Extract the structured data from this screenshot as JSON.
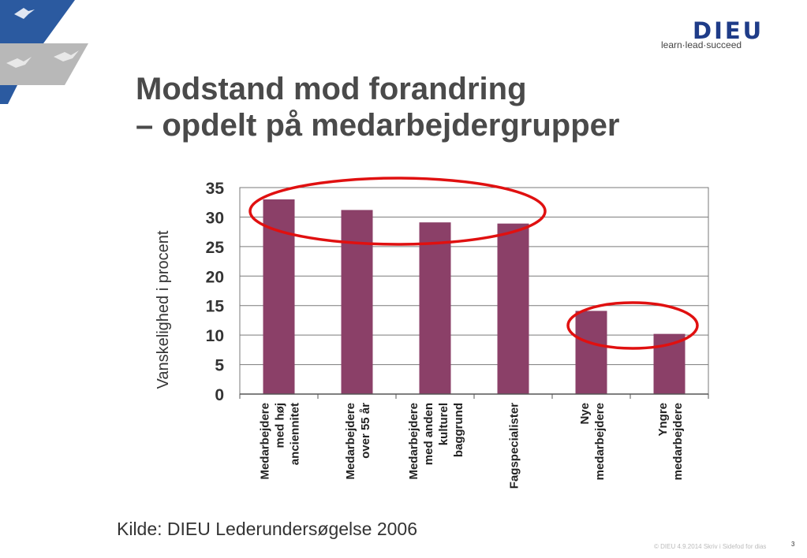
{
  "header": {
    "logo_text": "DIEU",
    "logo_tagline": "learn·lead·succeed",
    "title_line1": "Modstand mod forandring",
    "title_line2": "– opdelt på medarbejdergrupper"
  },
  "chart_data": {
    "type": "bar",
    "title": "",
    "xlabel": "",
    "ylabel": "Vanskelighed i procent",
    "ylim": [
      0,
      35
    ],
    "yticks": [
      0,
      5,
      10,
      15,
      20,
      25,
      30,
      35
    ],
    "grid": true,
    "categories": [
      [
        "Medarbejdere",
        "med høj",
        "anciennitet"
      ],
      [
        "Medarbejdere",
        "over 55 år"
      ],
      [
        "Medarbejdere",
        "med anden",
        "kulturel",
        "baggrund"
      ],
      [
        "Fagspecialister"
      ],
      [
        "Nye",
        "medarbejdere"
      ],
      [
        "Yngre",
        "medarbejdere"
      ]
    ],
    "values": [
      33,
      31.2,
      29.1,
      28.9,
      14.1,
      10.2
    ],
    "bar_color": "#8b4068",
    "highlight_color": "#e01010"
  },
  "source": "Kilde: DIEU Lederundersøgelse 2006",
  "footer": {
    "text": "© DIEU 4.9.2014 Skriv i Sidefod for dias",
    "page": "3"
  }
}
